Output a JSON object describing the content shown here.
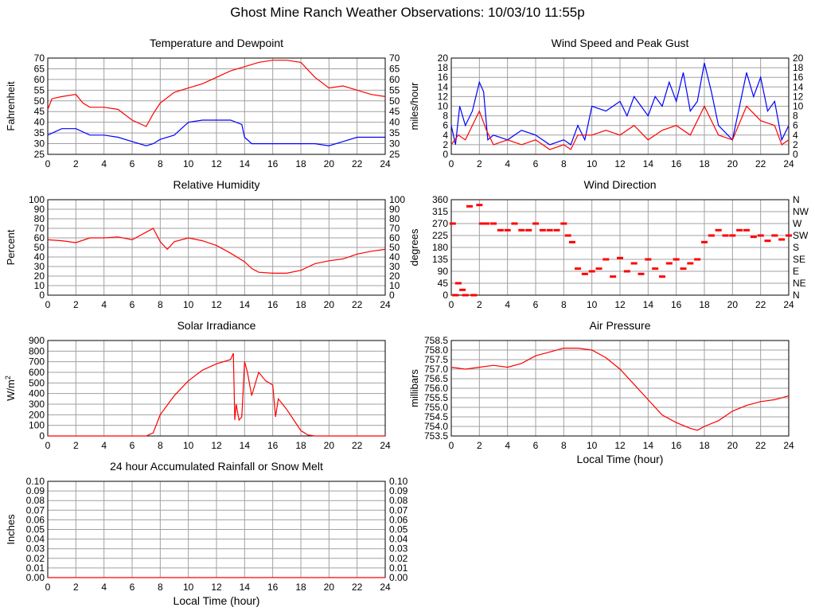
{
  "page": {
    "title": "Ghost Mine Ranch Weather Observations: 10/03/10 11:55p"
  },
  "colors": {
    "series_red": "#ff0000",
    "series_blue": "#0000ff",
    "grid": "#a0a0a0",
    "axis": "#000000",
    "background": "#ffffff"
  },
  "chart_data": [
    {
      "id": "temperature",
      "type": "line",
      "title": "Temperature and Dewpoint",
      "xlabel": "",
      "ylabel": "Fahrenheit",
      "xlim": [
        0,
        24
      ],
      "ylim": [
        25,
        70
      ],
      "x_ticks": [
        "0",
        "2",
        "4",
        "6",
        "8",
        "10",
        "12",
        "14",
        "16",
        "18",
        "20",
        "22",
        "24"
      ],
      "y_ticks": [
        "25",
        "30",
        "35",
        "40",
        "45",
        "50",
        "55",
        "60",
        "65",
        "70"
      ],
      "right_ticks": [
        "25",
        "30",
        "35",
        "40",
        "45",
        "50",
        "55",
        "60",
        "65",
        "70"
      ],
      "grid": true,
      "series": [
        {
          "color": "#ff0000",
          "x": [
            0,
            0.3,
            1,
            2,
            2.5,
            3,
            4,
            5,
            6,
            7,
            7.5,
            8,
            9,
            10,
            11,
            12,
            13,
            14,
            15,
            16,
            17,
            18,
            19,
            20,
            21,
            22,
            23,
            24
          ],
          "y": [
            46,
            51,
            52,
            53,
            49,
            47,
            47,
            46,
            41,
            38,
            44,
            49,
            54,
            56,
            58,
            61,
            64,
            66,
            68,
            69,
            69,
            68,
            61,
            56,
            57,
            55,
            53,
            52
          ]
        },
        {
          "color": "#0000ff",
          "x": [
            0,
            1,
            2,
            3,
            4,
            5,
            6,
            7,
            7.5,
            8,
            9,
            10,
            11,
            12,
            13,
            13.8,
            14,
            14.5,
            15,
            16,
            17,
            18,
            19,
            20,
            21,
            22,
            23,
            24
          ],
          "y": [
            34,
            37,
            37,
            34,
            34,
            33,
            31,
            29,
            30,
            32,
            34,
            40,
            41,
            41,
            41,
            39,
            33,
            30,
            30,
            30,
            30,
            30,
            30,
            29,
            31,
            33,
            33,
            33
          ]
        }
      ]
    },
    {
      "id": "wind-speed",
      "type": "line",
      "title": "Wind Speed and Peak Gust",
      "xlabel": "",
      "ylabel": "miles/hour",
      "xlim": [
        0,
        24
      ],
      "ylim": [
        0,
        20
      ],
      "x_ticks": [
        "0",
        "2",
        "4",
        "6",
        "8",
        "10",
        "12",
        "14",
        "16",
        "18",
        "20",
        "22",
        "24"
      ],
      "y_ticks": [
        "0",
        "2",
        "4",
        "6",
        "8",
        "10",
        "12",
        "14",
        "16",
        "18",
        "20"
      ],
      "right_ticks": [
        "0",
        "2",
        "4",
        "6",
        "8",
        "10",
        "12",
        "14",
        "16",
        "18",
        "20"
      ],
      "grid": true,
      "series": [
        {
          "color": "#0000ff",
          "x": [
            0,
            0.3,
            0.6,
            1,
            1.5,
            2,
            2.3,
            2.6,
            3,
            4,
            5,
            6,
            7,
            8,
            8.5,
            9,
            9.5,
            10,
            11,
            12,
            12.5,
            13,
            14,
            14.5,
            15,
            15.5,
            16,
            16.5,
            17,
            17.5,
            18,
            18.5,
            19,
            20,
            20.5,
            21,
            21.5,
            22,
            22.5,
            23,
            23.5,
            24
          ],
          "y": [
            6,
            2,
            10,
            6,
            9,
            15,
            13,
            3,
            4,
            3,
            5,
            4,
            2,
            3,
            2,
            6,
            3,
            10,
            9,
            11,
            8,
            12,
            8,
            12,
            10,
            15,
            11,
            17,
            9,
            11,
            19,
            13,
            6,
            3,
            10,
            17,
            12,
            16,
            9,
            11,
            3,
            6
          ]
        },
        {
          "color": "#ff0000",
          "x": [
            0,
            0.5,
            1,
            1.5,
            2,
            2.5,
            3,
            4,
            5,
            6,
            7,
            8,
            8.5,
            9,
            10,
            11,
            12,
            13,
            14,
            15,
            16,
            17,
            18,
            19,
            20,
            21,
            22,
            23,
            23.5,
            24
          ],
          "y": [
            2,
            4,
            3,
            6,
            9,
            5,
            2,
            3,
            2,
            3,
            1,
            2,
            1,
            4,
            4,
            5,
            4,
            6,
            3,
            5,
            6,
            4,
            10,
            4,
            3,
            10,
            7,
            6,
            2,
            3
          ]
        }
      ]
    },
    {
      "id": "humidity",
      "type": "line",
      "title": "Relative Humidity",
      "xlabel": "",
      "ylabel": "Percent",
      "xlim": [
        0,
        24
      ],
      "ylim": [
        0,
        100
      ],
      "x_ticks": [
        "0",
        "2",
        "4",
        "6",
        "8",
        "10",
        "12",
        "14",
        "16",
        "18",
        "20",
        "22",
        "24"
      ],
      "y_ticks": [
        "0",
        "10",
        "20",
        "30",
        "40",
        "50",
        "60",
        "70",
        "80",
        "90",
        "100"
      ],
      "right_ticks": [
        "0",
        "10",
        "20",
        "30",
        "40",
        "50",
        "60",
        "70",
        "80",
        "90",
        "100"
      ],
      "grid": true,
      "series": [
        {
          "color": "#ff0000",
          "x": [
            0,
            1,
            2,
            3,
            4,
            5,
            6,
            7,
            7.5,
            8,
            8.5,
            9,
            10,
            11,
            12,
            13,
            14,
            14.5,
            15,
            16,
            17,
            18,
            19,
            20,
            21,
            22,
            23,
            24
          ],
          "y": [
            58,
            57,
            55,
            60,
            60,
            61,
            58,
            66,
            70,
            56,
            48,
            56,
            60,
            57,
            52,
            44,
            35,
            28,
            24,
            23,
            23,
            26,
            33,
            36,
            38,
            43,
            46,
            48
          ]
        }
      ]
    },
    {
      "id": "wind-direction",
      "type": "scatter",
      "title": "Wind Direction",
      "xlabel": "",
      "ylabel": "degrees",
      "xlim": [
        0,
        24
      ],
      "ylim": [
        0,
        360
      ],
      "x_ticks": [
        "0",
        "2",
        "4",
        "6",
        "8",
        "10",
        "12",
        "14",
        "16",
        "18",
        "20",
        "22",
        "24"
      ],
      "y_ticks": [
        "0",
        "45",
        "90",
        "135",
        "180",
        "225",
        "270",
        "315",
        "360"
      ],
      "right_ticks": [
        "N",
        "NE",
        "E",
        "SE",
        "S",
        "SW",
        "W",
        "NW",
        "N"
      ],
      "grid": true,
      "series": [
        {
          "color": "#ff0000",
          "x": [
            0.1,
            0.3,
            0.5,
            0.8,
            1,
            1.3,
            1.6,
            2,
            2.2,
            2.5,
            3,
            3.5,
            4,
            4.5,
            5,
            5.5,
            6,
            6.5,
            7,
            7.5,
            8,
            8.3,
            8.6,
            9,
            9.5,
            10,
            10.5,
            11,
            11.5,
            12,
            12.5,
            13,
            13.5,
            14,
            14.5,
            15,
            15.5,
            16,
            16.5,
            17,
            17.5,
            18,
            18.5,
            19,
            19.5,
            20,
            20.5,
            21,
            21.5,
            22,
            22.5,
            23,
            23.5,
            24
          ],
          "y": [
            270,
            0,
            45,
            20,
            0,
            335,
            0,
            340,
            270,
            270,
            270,
            245,
            245,
            270,
            245,
            245,
            270,
            245,
            245,
            245,
            270,
            225,
            200,
            100,
            80,
            90,
            100,
            135,
            70,
            140,
            90,
            120,
            80,
            135,
            100,
            70,
            120,
            135,
            100,
            120,
            135,
            200,
            225,
            245,
            225,
            225,
            245,
            245,
            220,
            225,
            205,
            225,
            210,
            225
          ]
        }
      ]
    },
    {
      "id": "solar",
      "type": "line",
      "title": "Solar Irradiance",
      "xlabel": "",
      "ylabel": "W/m2",
      "xlim": [
        0,
        24
      ],
      "ylim": [
        0,
        900
      ],
      "x_ticks": [
        "0",
        "2",
        "4",
        "6",
        "8",
        "10",
        "12",
        "14",
        "16",
        "18",
        "20",
        "22",
        "24"
      ],
      "y_ticks": [
        "0",
        "100",
        "200",
        "300",
        "400",
        "500",
        "600",
        "700",
        "800",
        "900"
      ],
      "grid": true,
      "series": [
        {
          "color": "#ff0000",
          "x": [
            0,
            7,
            7.5,
            8,
            9,
            10,
            11,
            12,
            13,
            13.2,
            13.3,
            13.4,
            13.6,
            13.8,
            14,
            14.2,
            14.5,
            15,
            15.5,
            16,
            16.2,
            16.4,
            17,
            17.5,
            18,
            18.5,
            19,
            20,
            21,
            22,
            23,
            24
          ],
          "y": [
            0,
            0,
            30,
            200,
            380,
            520,
            620,
            680,
            720,
            780,
            150,
            300,
            150,
            180,
            700,
            600,
            380,
            600,
            520,
            480,
            180,
            350,
            250,
            150,
            50,
            10,
            0,
            0,
            0,
            0,
            0,
            0
          ]
        }
      ]
    },
    {
      "id": "pressure",
      "type": "line",
      "title": "Air Pressure",
      "xlabel": "Local Time (hour)",
      "ylabel": "millibars",
      "xlim": [
        0,
        24
      ],
      "ylim": [
        753.5,
        758.5
      ],
      "x_ticks": [
        "0",
        "2",
        "4",
        "6",
        "8",
        "10",
        "12",
        "14",
        "16",
        "18",
        "20",
        "22",
        "24"
      ],
      "y_ticks": [
        "753.5",
        "754.0",
        "754.5",
        "755.0",
        "755.5",
        "756.0",
        "756.5",
        "757.0",
        "757.5",
        "758.0",
        "758.5"
      ],
      "grid": true,
      "series": [
        {
          "color": "#ff0000",
          "x": [
            0,
            1,
            2,
            3,
            4,
            5,
            6,
            7,
            8,
            9,
            10,
            11,
            12,
            13,
            14,
            15,
            16,
            17,
            17.5,
            18,
            19,
            20,
            21,
            22,
            23,
            24
          ],
          "y": [
            757.1,
            757.0,
            757.1,
            757.2,
            757.1,
            757.3,
            757.7,
            757.9,
            758.1,
            758.1,
            758.0,
            757.6,
            757.0,
            756.2,
            755.4,
            754.6,
            754.2,
            753.9,
            753.8,
            754.0,
            754.3,
            754.8,
            755.1,
            755.3,
            755.4,
            755.6
          ]
        }
      ]
    },
    {
      "id": "rainfall",
      "type": "line",
      "title": "24 hour Accumulated Rainfall or Snow Melt",
      "xlabel": "Local Time (hour)",
      "ylabel": "Inches",
      "xlim": [
        0,
        24
      ],
      "ylim": [
        0,
        0.1
      ],
      "x_ticks": [
        "0",
        "2",
        "4",
        "6",
        "8",
        "10",
        "12",
        "14",
        "16",
        "18",
        "20",
        "22",
        "24"
      ],
      "y_ticks": [
        "0.00",
        "0.01",
        "0.02",
        "0.03",
        "0.04",
        "0.05",
        "0.06",
        "0.07",
        "0.08",
        "0.09",
        "0.10"
      ],
      "right_ticks": [
        "0.00",
        "0.01",
        "0.02",
        "0.03",
        "0.04",
        "0.05",
        "0.06",
        "0.07",
        "0.08",
        "0.09",
        "0.10"
      ],
      "grid": true,
      "series": [
        {
          "color": "#ff0000",
          "x": [
            0,
            24
          ],
          "y": [
            0,
            0
          ]
        }
      ]
    }
  ]
}
